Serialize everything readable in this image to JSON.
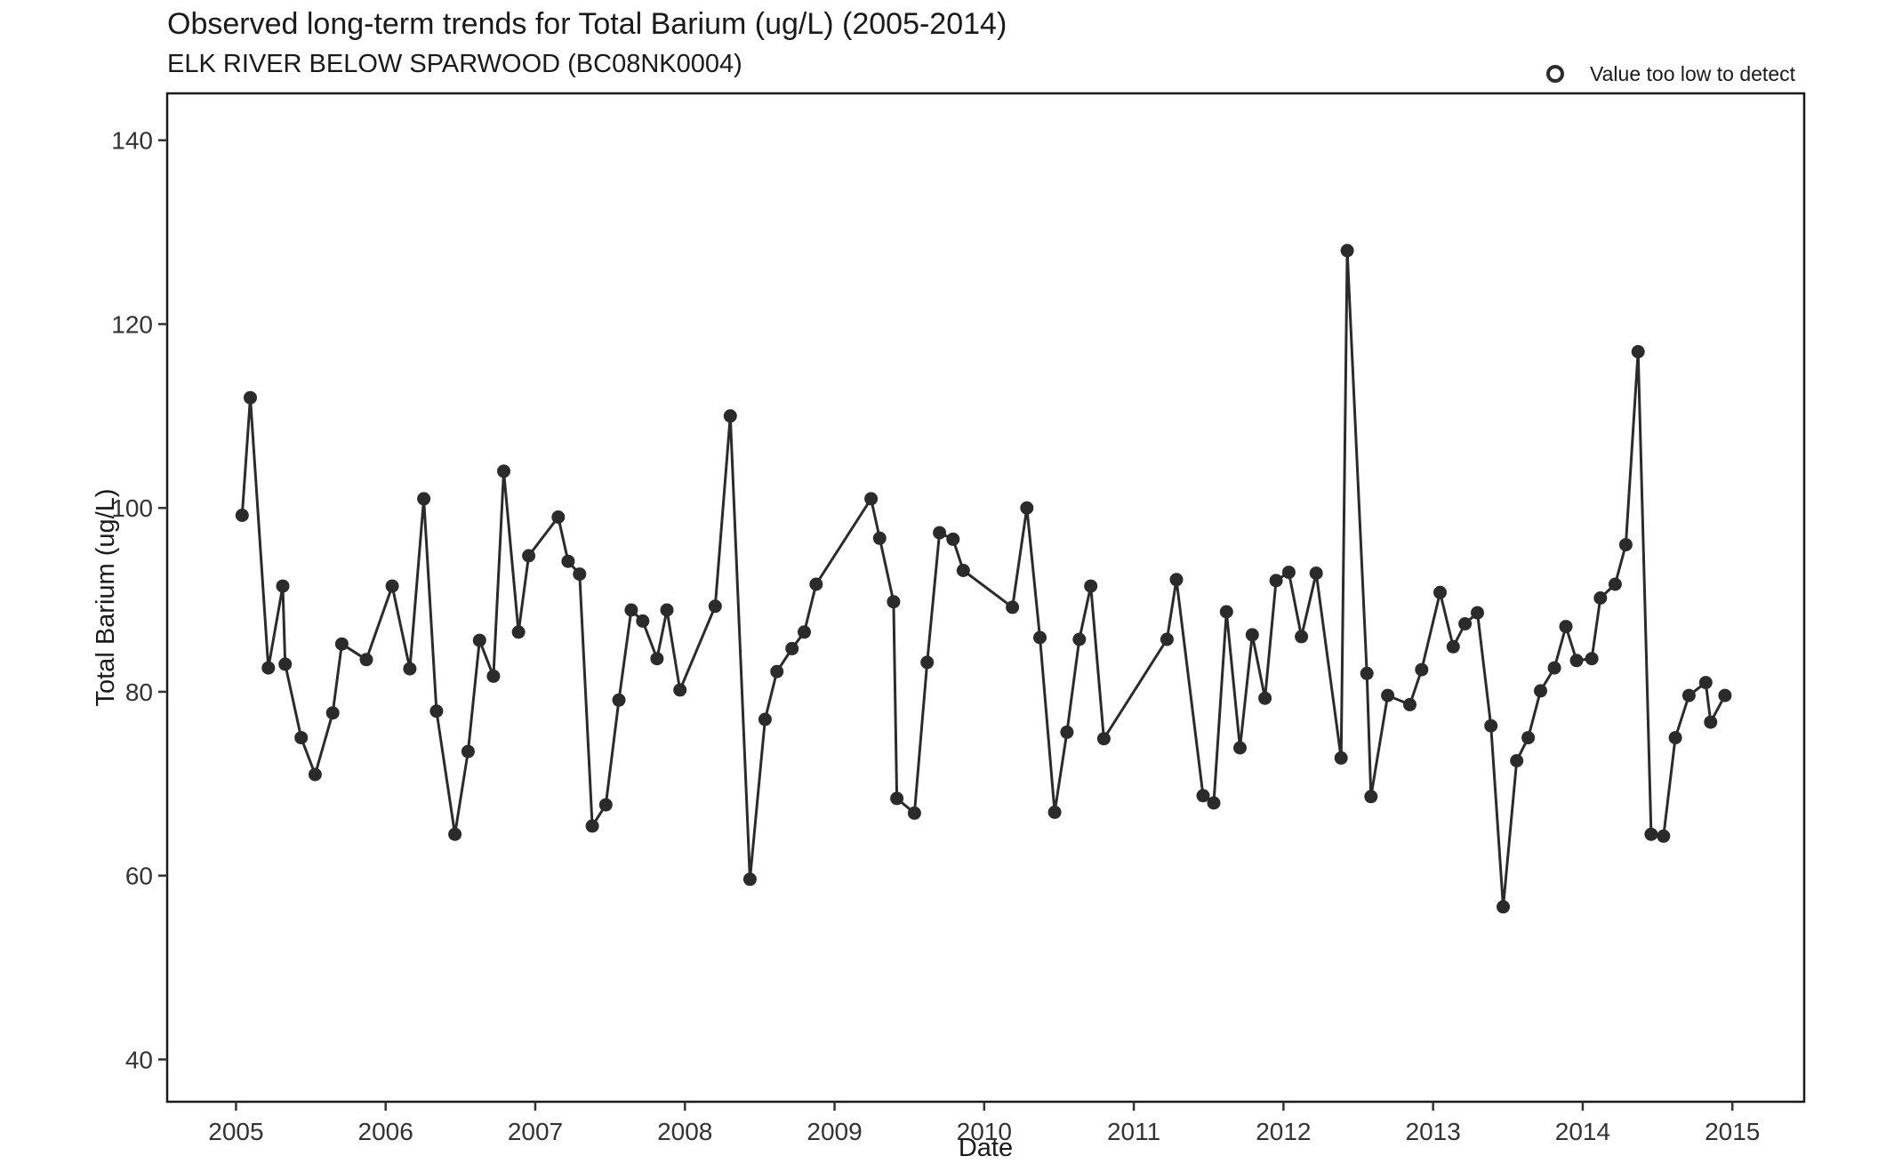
{
  "chart_data": {
    "type": "line",
    "title": "Observed long-term trends for Total Barium (ug/L) (2005-2014)",
    "subtitle": "ELK RIVER BELOW SPARWOOD (BC08NK0004)",
    "xlabel": "Date",
    "ylabel": "Total Barium (ug/L)",
    "xlim": [
      2004.54,
      2015.48
    ],
    "ylim": [
      35.4,
      145.1
    ],
    "xticks": [
      "2005",
      "2006",
      "2007",
      "2008",
      "2009",
      "2010",
      "2011",
      "2012",
      "2013",
      "2014",
      "2015"
    ],
    "yticks": [
      "40",
      "60",
      "80",
      "100",
      "120",
      "140"
    ],
    "grid": false,
    "legend": {
      "position": "top-right",
      "entries": [
        {
          "label": "Value too low to detect",
          "marker": "open-circle"
        }
      ]
    },
    "colors": {
      "series": "#2b2b2b",
      "background": "#ffffff",
      "frame": "#1a1a1a"
    },
    "series": [
      {
        "x": [
          "2005-01-16",
          "2005-02-05",
          "2005-03-21",
          "2005-04-25",
          "2005-05-01",
          "2005-06-09",
          "2005-07-13",
          "2005-08-25",
          "2005-09-16",
          "2005-11-15",
          "2006-01-17",
          "2006-03-01",
          "2006-04-04",
          "2006-05-05",
          "2006-06-19",
          "2006-07-21",
          "2006-08-18",
          "2006-09-21",
          "2006-10-16",
          "2006-11-21",
          "2006-12-16",
          "2007-02-26",
          "2007-03-22",
          "2007-04-19",
          "2007-05-20",
          "2007-06-22",
          "2007-07-24",
          "2007-08-23",
          "2007-09-20",
          "2007-10-25",
          "2007-11-18",
          "2007-12-20",
          "2008-03-15",
          "2008-04-21",
          "2008-06-08",
          "2008-07-15",
          "2008-08-13",
          "2008-09-19",
          "2008-10-19",
          "2008-11-17",
          "2009-03-31",
          "2009-04-21",
          "2009-05-25",
          "2009-06-02",
          "2009-07-15",
          "2009-08-15",
          "2009-09-14",
          "2009-10-17",
          "2009-11-11",
          "2010-03-11",
          "2010-04-15",
          "2010-05-17",
          "2010-06-22",
          "2010-07-22",
          "2010-08-21",
          "2010-09-18",
          "2010-10-20",
          "2011-03-23",
          "2011-04-15",
          "2011-06-19",
          "2011-07-15",
          "2011-08-15",
          "2011-09-17",
          "2011-10-17",
          "2011-11-17",
          "2011-12-14",
          "2012-01-14",
          "2012-02-14",
          "2012-03-21",
          "2012-05-21",
          "2012-06-05",
          "2012-07-23",
          "2012-08-02",
          "2012-09-12",
          "2012-11-05",
          "2012-12-04",
          "2013-01-18",
          "2013-02-19",
          "2013-03-20",
          "2013-04-19",
          "2013-05-22",
          "2013-06-21",
          "2013-07-24",
          "2013-08-21",
          "2013-09-20",
          "2013-10-24",
          "2013-11-21",
          "2013-12-17",
          "2014-01-23",
          "2014-02-13",
          "2014-03-21",
          "2014-04-16",
          "2014-05-16",
          "2014-06-17",
          "2014-07-17",
          "2014-08-15",
          "2014-09-17",
          "2014-10-28",
          "2014-11-09",
          "2014-12-14"
        ],
        "values": [
          99.2,
          112,
          82.6,
          91.5,
          83,
          75,
          71,
          77.7,
          85.2,
          83.5,
          91.5,
          82.5,
          101,
          77.9,
          64.5,
          73.5,
          85.6,
          81.7,
          104,
          86.5,
          94.8,
          99,
          94.2,
          92.8,
          65.4,
          67.7,
          79.1,
          88.9,
          87.7,
          83.6,
          88.9,
          80.2,
          89.3,
          110,
          59.6,
          77,
          82.2,
          84.7,
          86.5,
          91.7,
          101,
          96.7,
          89.8,
          68.4,
          66.8,
          83.2,
          97.3,
          96.6,
          93.2,
          89.2,
          100,
          85.9,
          66.9,
          75.6,
          85.7,
          91.5,
          74.9,
          85.7,
          92.2,
          68.7,
          67.9,
          88.7,
          73.9,
          86.2,
          79.3,
          92.1,
          93,
          86,
          92.9,
          72.8,
          128,
          82,
          68.6,
          79.6,
          78.6,
          82.4,
          90.8,
          84.9,
          87.4,
          88.6,
          76.3,
          56.6,
          72.5,
          75,
          80.1,
          82.6,
          87.1,
          83.4,
          83.6,
          90.2,
          91.7,
          96,
          117,
          64.5,
          64.3,
          75,
          79.6,
          81,
          76.7,
          79.6
        ]
      }
    ]
  }
}
